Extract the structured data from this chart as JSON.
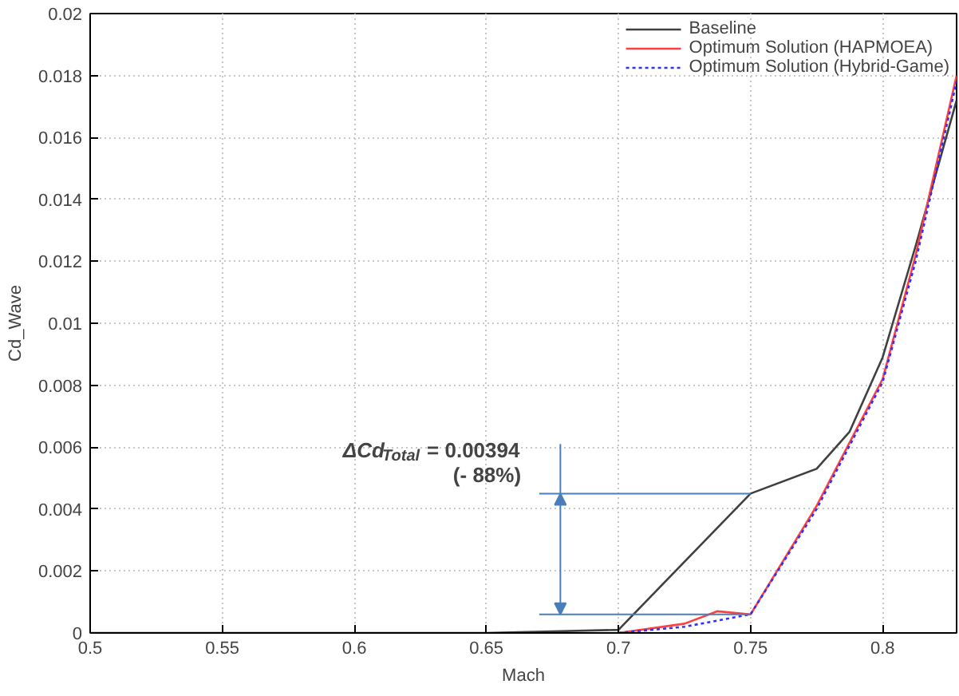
{
  "chart_data": {
    "type": "line",
    "xlabel": "Mach",
    "ylabel": "Cd_Wave",
    "xlim": [
      0.5,
      0.828
    ],
    "ylim": [
      0,
      0.02
    ],
    "xticks": [
      0.5,
      0.55,
      0.6,
      0.65,
      0.7,
      0.75,
      0.8
    ],
    "yticks": [
      0,
      0.002,
      0.004,
      0.006,
      0.008,
      0.01,
      0.012,
      0.014,
      0.016,
      0.018,
      0.02
    ],
    "grid": true,
    "legend": "top right",
    "series": [
      {
        "name": "Baseline",
        "color": "#404040",
        "line_style": "solid",
        "x": [
          0.5,
          0.6,
          0.65,
          0.7,
          0.75,
          0.775,
          0.7875,
          0.8,
          0.8125,
          0.828
        ],
        "values": [
          0,
          0,
          0,
          0.0001,
          0.0045,
          0.0053,
          0.0065,
          0.0089,
          0.0125,
          0.0172
        ]
      },
      {
        "name": "Optimum Solution (HAPMOEA)",
        "color": "#ff4040",
        "line_style": "solid",
        "x": [
          0.7,
          0.725,
          0.7375,
          0.75,
          0.775,
          0.8,
          0.8125,
          0.828
        ],
        "values": [
          0,
          0.0003,
          0.0007,
          0.0006,
          0.0041,
          0.0082,
          0.0122,
          0.018
        ]
      },
      {
        "name": "Optimum Solution (Hybrid-Game)",
        "color": "#3030ff",
        "line_style": "dotted",
        "x": [
          0.7,
          0.725,
          0.75,
          0.775,
          0.8,
          0.8125,
          0.828
        ],
        "values": [
          0,
          0.0002,
          0.0006,
          0.004,
          0.0081,
          0.012,
          0.0178
        ]
      }
    ],
    "ref_lines": [
      {
        "axis": "y",
        "value": 0.0045,
        "color": "#4a7ebb"
      },
      {
        "axis": "y",
        "value": 0.0006,
        "color": "#4a7ebb"
      }
    ],
    "annotations": [
      "ΔCd$_{Total}$ = 0.00394",
      "(-  88%)"
    ]
  }
}
